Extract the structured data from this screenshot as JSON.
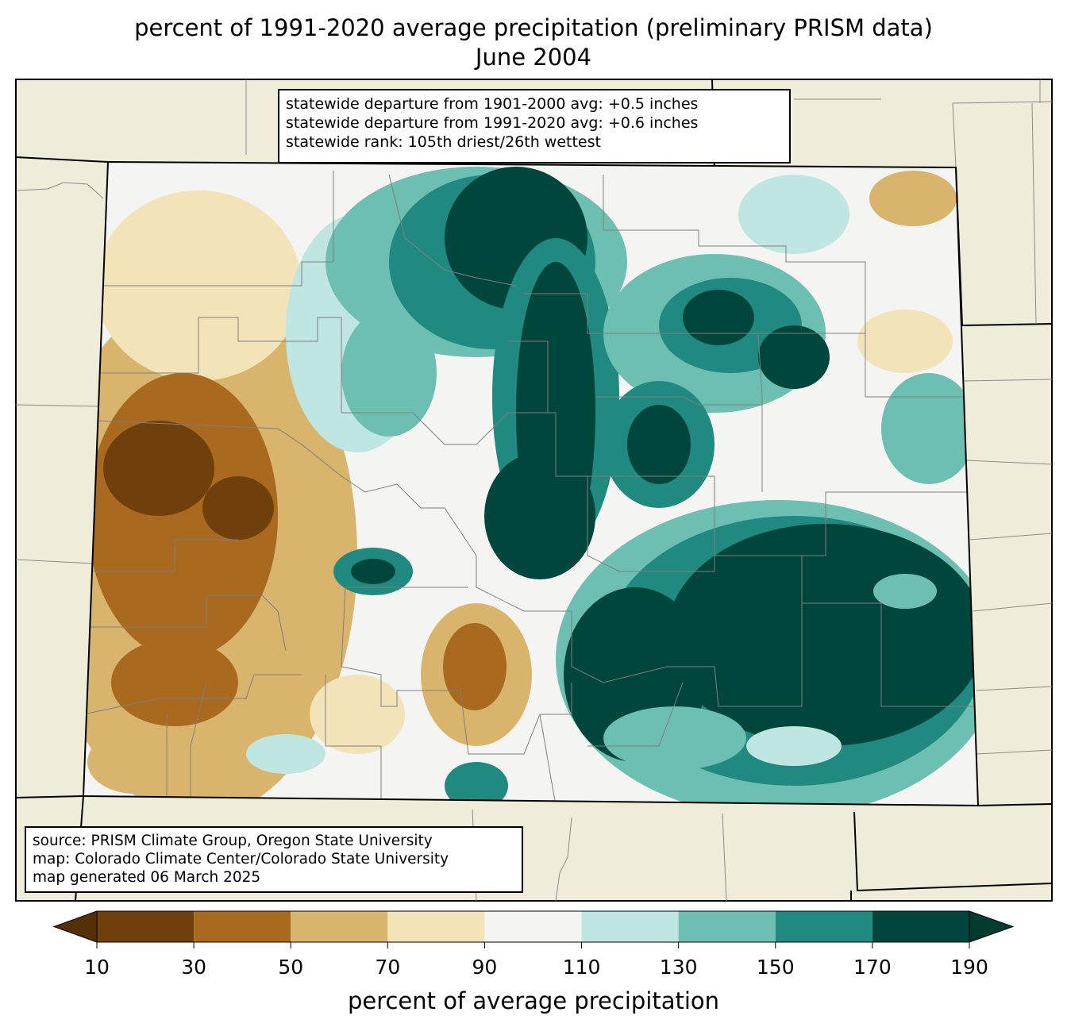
{
  "title": {
    "line1": "percent of 1991-2020 average precipitation (preliminary PRISM data)",
    "line2": "June 2004"
  },
  "stats": {
    "line1": "statewide departure from 1901-2000 avg: +0.5 inches",
    "line2": "statewide departure from 1991-2020 avg: +0.6 inches",
    "line3": "statewide rank: 105th driest/26th wettest"
  },
  "source": {
    "line1": "source: PRISM Climate Group, Oregon State University",
    "line2": "map: Colorado Climate Center/Colorado State University",
    "line3": "map generated 06 March 2025"
  },
  "colorbar": {
    "label": "percent of average precipitation",
    "ticks": [
      "10",
      "30",
      "50",
      "70",
      "90",
      "110",
      "130",
      "150",
      "170",
      "190"
    ],
    "colors": [
      "#6f3f0c",
      "#a9691f",
      "#d8b46c",
      "#f2e3b9",
      "#f4f4f2",
      "#bfe6e0",
      "#6dbfb1",
      "#218a80",
      "#01463d"
    ],
    "under_color": "#543005",
    "over_color": "#003c30"
  },
  "map": {
    "land_color": "#efedd9",
    "region": "Colorado"
  }
}
